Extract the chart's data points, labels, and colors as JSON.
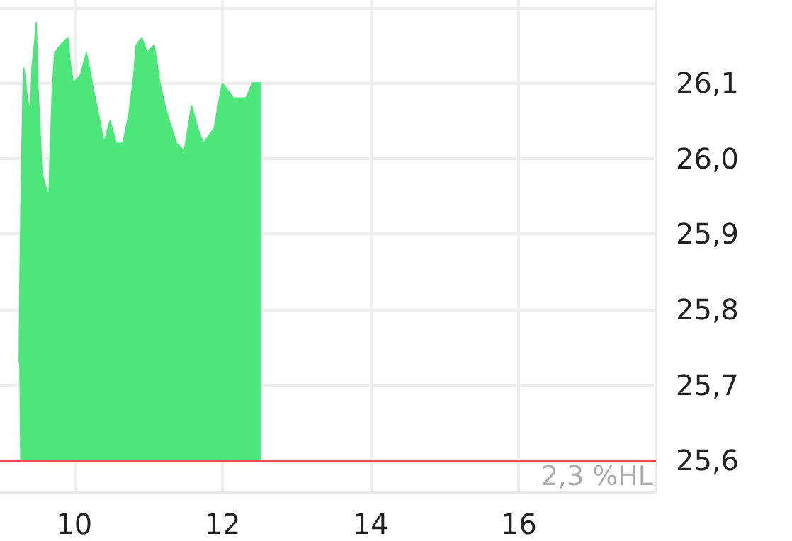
{
  "chart_data": {
    "type": "area",
    "x": [
      9.259,
      9.272,
      9.291,
      9.317,
      9.336,
      9.368,
      9.412,
      9.432,
      9.464,
      9.489,
      9.508,
      9.534,
      9.566,
      9.623,
      9.661,
      9.674,
      9.706,
      9.738,
      9.815,
      9.917,
      9.943,
      9.987,
      10.083,
      10.166,
      10.262,
      10.326,
      10.402,
      10.485,
      10.568,
      10.658,
      10.741,
      10.805,
      10.837,
      10.913,
      10.983,
      11.079,
      11.156,
      11.252,
      11.379,
      11.488,
      11.584,
      11.667,
      11.743,
      11.89,
      11.999,
      12.146,
      12.318,
      12.408,
      12.516
    ],
    "series": [
      {
        "color": "#4ce67a",
        "values": [
          25.73,
          25.86,
          25.99,
          26.12,
          26.11,
          26.08,
          26.06,
          26.12,
          26.15,
          26.18,
          26.1,
          26.05,
          25.98,
          25.96,
          25.95,
          26.0,
          26.09,
          26.14,
          26.15,
          26.16,
          26.13,
          26.1,
          26.11,
          26.14,
          26.09,
          26.06,
          26.02,
          26.05,
          26.02,
          26.02,
          26.06,
          26.11,
          26.15,
          26.16,
          26.14,
          26.15,
          26.1,
          26.06,
          26.02,
          26.01,
          26.07,
          26.04,
          26.02,
          26.04,
          26.1,
          26.08,
          26.08,
          26.1,
          26.1
        ]
      }
    ],
    "xlim": [
      9.0,
      17.85
    ],
    "ylim": [
      25.557,
      26.21
    ],
    "xticks": [
      10,
      12,
      14,
      16
    ],
    "yticks": [
      {
        "value": 25.6,
        "label": "25,6"
      },
      {
        "value": 25.7,
        "label": "25,7"
      },
      {
        "value": 25.8,
        "label": "25,8"
      },
      {
        "value": 25.9,
        "label": "25,9"
      },
      {
        "value": 26.0,
        "label": "26,0"
      },
      {
        "value": 26.1,
        "label": "26,1"
      },
      {
        "value": 26.2,
        "label": null
      }
    ],
    "ref_lines": [
      {
        "axis": "y",
        "value": 25.6,
        "label": "2,3 %HL",
        "color": "#f04a5a"
      }
    ],
    "grid": true,
    "marker": "none"
  }
}
